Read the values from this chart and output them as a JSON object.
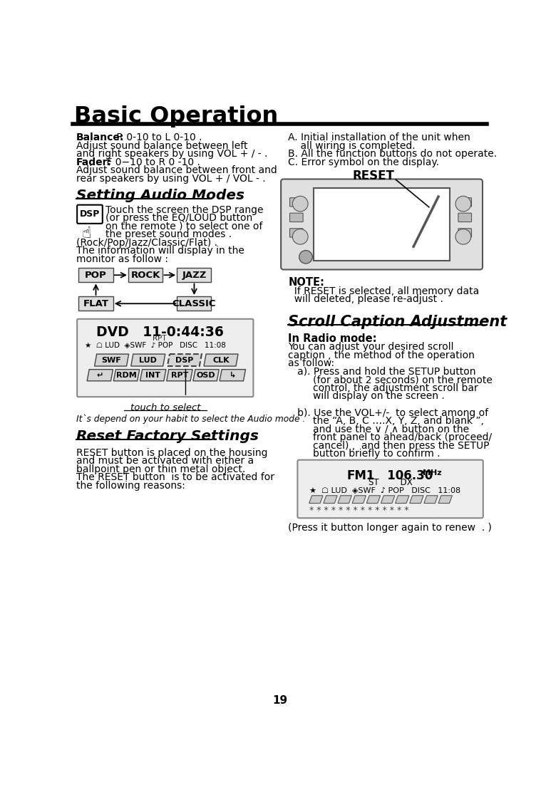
{
  "title": "Basic Operation",
  "page_num": "19",
  "bg_color": "#ffffff",
  "balance_lines": [
    [
      "Balance:",
      " R 0-10 to L 0-10 ."
    ],
    [
      "",
      "Adjust sound balance between left"
    ],
    [
      "",
      "and right speakers by using VOL + / - ."
    ],
    [
      "Fader:",
      " F 0−10 to R 0 -10 ."
    ],
    [
      "",
      "Adjust sound balance between front and"
    ],
    [
      "",
      "rear speakers by using VOL + / VOL - ."
    ]
  ],
  "reset_reasons": [
    "A. Initial installation of the unit when",
    "    all wiring is completed.",
    "B. All the function buttons do not operate.",
    "C. Error symbol on the display."
  ],
  "audio_modes_title": "Setting Audio Modes",
  "dsp_text": [
    "Touch the screen the DSP range",
    "(or press the EQ/LOUD button",
    "on the remote ) to select one of",
    "the preset sound modes ."
  ],
  "audio_extra": [
    "(Rock/Pop/Jazz/Classic/Flat) .",
    "The information will display in the",
    "monitor as follow :"
  ],
  "dsp_modes_top": [
    "POP",
    "ROCK",
    "JAZZ"
  ],
  "dsp_modes_bot": [
    "FLAT",
    "CLASSIC"
  ],
  "touch_label": "touch to select",
  "habit_text": "It`s depend on your habit to select the Audio mode .",
  "reset_title": "Reset Factory Settings",
  "reset_body": [
    "RESET button is placed on the housing",
    "and must be activated with either a",
    "ballpoint pen or thin metal object.",
    "The RESET button  is to be activated for",
    "the following reasons:"
  ],
  "note_title": "NOTE:",
  "note_body": [
    "  If RESET is selected, all memory data",
    "  will deleted, please re-adjust ."
  ],
  "scroll_title": "Scroll Caption Adjustment",
  "radio_bold": "In Radio mode:",
  "scroll_body": [
    "You can adjust your desired scroll",
    "caption , the method of the operation",
    "as follow:",
    "   a). Press and hold the SETUP button",
    "        (for about 2 seconds) on the remote",
    "        control, the adjustment scroll bar",
    "        will display on the screen .",
    "",
    "   b). Use the VOL+/-  to select among of",
    "        the “A, B, C ….X, Y, Z, and blank ”,",
    "        and use the ∨ / ∧ button on the",
    "        front panel to ahead/back (proceed/",
    "        cancel) ,  and then press the SETUP",
    "        button briefly to confirm ."
  ],
  "press_text": "(Press it button longer again to renew  . )",
  "fm_line1_bold": "FM1",
  "fm_line1_normal": "   106.30 ",
  "fm_line1_small": "MHz",
  "fm_line2": "ST        DX",
  "fm_line3": "★  ☖ LUD  ◈SWF  ♪ POP   DISC   11:08",
  "dvd_line1": "DVD   11-0:44:36",
  "dvd_line2": "RPT",
  "dvd_line3": "★  ☖ LUD  ◈SWF  ♪ POP   DISC   11:08",
  "dvd_btns_row1": [
    "SWF",
    "LUD",
    "DSP",
    "CLK"
  ],
  "dvd_btns_row2": [
    "↵",
    "RDM",
    "INT",
    "RPT",
    "OSD",
    "↳"
  ]
}
